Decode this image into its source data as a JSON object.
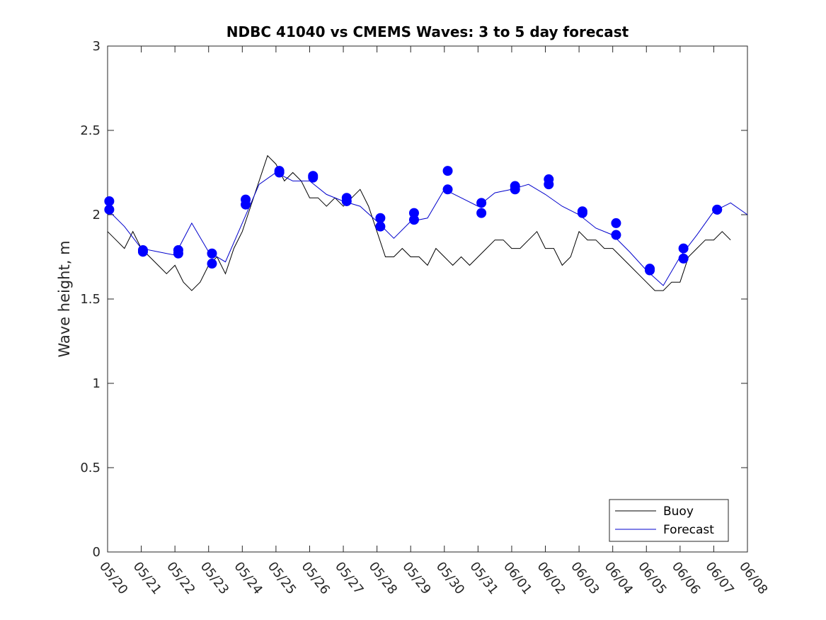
{
  "chart_data": {
    "type": "line",
    "title": "NDBC 41040 vs CMEMS Waves: 3 to 5 day forecast",
    "xlabel": "",
    "ylabel": "Wave height, m",
    "ylim": [
      0,
      3
    ],
    "yticks": [
      "0",
      "0.5",
      "1",
      "1.5",
      "2",
      "2.5",
      "3"
    ],
    "xlim_days": [
      0,
      19
    ],
    "xtick_labels": [
      "05/20",
      "05/21",
      "05/22",
      "05/23",
      "05/24",
      "05/25",
      "05/26",
      "05/27",
      "05/28",
      "05/29",
      "05/30",
      "05/31",
      "06/01",
      "06/02",
      "06/03",
      "06/04",
      "06/05",
      "06/06",
      "06/07",
      "06/08"
    ],
    "grid": false,
    "legend_position": "bottom-right",
    "series": [
      {
        "name": "Buoy",
        "color": "#000000",
        "x": [
          0,
          0.25,
          0.5,
          0.75,
          1.0,
          1.25,
          1.5,
          1.75,
          2.0,
          2.25,
          2.5,
          2.75,
          3.0,
          3.25,
          3.5,
          3.75,
          4.0,
          4.25,
          4.5,
          4.75,
          5.0,
          5.25,
          5.5,
          5.75,
          6.0,
          6.25,
          6.5,
          6.75,
          7.0,
          7.25,
          7.5,
          7.75,
          8.0,
          8.25,
          8.5,
          8.75,
          9.0,
          9.25,
          9.5,
          9.75,
          10.0,
          10.25,
          10.5,
          10.75,
          11.0,
          11.25,
          11.5,
          11.75,
          12.0,
          12.25,
          12.5,
          12.75,
          13.0,
          13.25,
          13.5,
          13.75,
          14.0,
          14.25,
          14.5,
          14.75,
          15.0,
          15.25,
          15.5,
          15.75,
          16.0,
          16.25,
          16.5,
          16.75,
          17.0,
          17.25,
          17.5,
          17.75,
          18.0,
          18.25,
          18.5
        ],
        "y": [
          1.9,
          1.85,
          1.8,
          1.9,
          1.8,
          1.75,
          1.7,
          1.65,
          1.7,
          1.6,
          1.55,
          1.6,
          1.7,
          1.75,
          1.65,
          1.8,
          1.9,
          2.05,
          2.2,
          2.35,
          2.3,
          2.2,
          2.25,
          2.2,
          2.1,
          2.1,
          2.05,
          2.1,
          2.05,
          2.1,
          2.15,
          2.05,
          1.9,
          1.75,
          1.75,
          1.8,
          1.75,
          1.75,
          1.7,
          1.8,
          1.75,
          1.7,
          1.75,
          1.7,
          1.75,
          1.8,
          1.85,
          1.85,
          1.8,
          1.8,
          1.85,
          1.9,
          1.8,
          1.8,
          1.7,
          1.75,
          1.9,
          1.85,
          1.85,
          1.8,
          1.8,
          1.75,
          1.7,
          1.65,
          1.6,
          1.55,
          1.55,
          1.6,
          1.6,
          1.75,
          1.8,
          1.85,
          1.85,
          1.9,
          1.85
        ]
      },
      {
        "name": "Forecast",
        "color": "#0000cc",
        "x": [
          0,
          0.5,
          1.0,
          1.5,
          2.0,
          2.5,
          3.0,
          3.5,
          4.0,
          4.5,
          5.0,
          5.5,
          6.0,
          6.5,
          7.0,
          7.5,
          8.0,
          8.5,
          9.0,
          9.5,
          10.0,
          10.5,
          11.0,
          11.5,
          12.0,
          12.5,
          13.0,
          13.5,
          14.0,
          14.5,
          15.0,
          15.5,
          16.0,
          16.5,
          17.0,
          17.5,
          18.0,
          18.5,
          19.0
        ],
        "y": [
          2.03,
          1.93,
          1.8,
          1.78,
          1.76,
          1.95,
          1.78,
          1.72,
          1.95,
          2.18,
          2.25,
          2.2,
          2.2,
          2.12,
          2.08,
          2.05,
          1.96,
          1.86,
          1.96,
          1.98,
          2.15,
          2.1,
          2.05,
          2.13,
          2.15,
          2.18,
          2.12,
          2.05,
          2.0,
          1.92,
          1.88,
          1.78,
          1.67,
          1.58,
          1.75,
          1.88,
          2.02,
          2.07,
          2.0
        ]
      }
    ],
    "forecast_start_markers": {
      "x": [
        0.05,
        0.05,
        1.05,
        1.05,
        2.1,
        2.1,
        3.1,
        3.1,
        4.1,
        4.1,
        5.1,
        5.1,
        6.1,
        6.1,
        7.1,
        7.1,
        8.1,
        8.1,
        9.1,
        9.1,
        10.1,
        10.1,
        11.1,
        11.1,
        12.1,
        12.1,
        13.1,
        13.1,
        14.1,
        14.1,
        15.1,
        15.1,
        16.1,
        16.1,
        17.1,
        17.1,
        18.1,
        18.1
      ],
      "y": [
        2.08,
        2.03,
        1.79,
        1.78,
        1.79,
        1.77,
        1.77,
        1.71,
        2.09,
        2.06,
        2.25,
        2.26,
        2.23,
        2.22,
        2.1,
        2.08,
        1.98,
        1.93,
        2.01,
        1.97,
        2.26,
        2.15,
        2.07,
        2.01,
        2.17,
        2.15,
        2.21,
        2.18,
        2.02,
        2.01,
        1.95,
        1.88,
        1.68,
        1.67,
        1.8,
        1.74,
        2.03,
        2.03
      ]
    }
  }
}
